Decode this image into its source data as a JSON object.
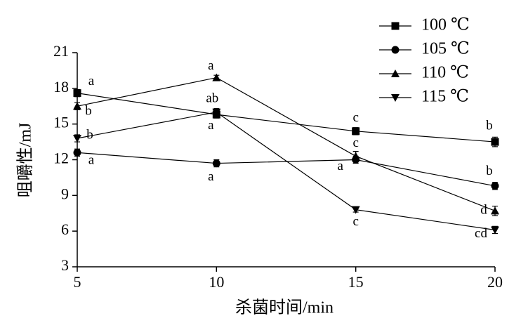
{
  "chart_data": {
    "type": "line",
    "x_label": "杀菌时间/min",
    "y_label": "咀嚼性/mJ",
    "x": [
      5,
      10,
      15,
      20
    ],
    "xlim": [
      5,
      20
    ],
    "xticks": [
      5,
      10,
      15,
      20
    ],
    "ylim": [
      3,
      21
    ],
    "yticks": [
      3,
      6,
      9,
      12,
      15,
      18,
      21
    ],
    "series": [
      {
        "name": "100 ℃",
        "marker": "square",
        "color": "#000000",
        "values": [
          17.6,
          15.8,
          14.4,
          13.5
        ],
        "errors": [
          0.3,
          0.3,
          0.3,
          0.4
        ],
        "labels": [
          "a",
          "ab",
          "c",
          "b"
        ]
      },
      {
        "name": "105 ℃",
        "marker": "circle",
        "color": "#000000",
        "values": [
          12.6,
          11.7,
          12.0,
          9.8
        ],
        "errors": [
          0.3,
          0.3,
          0.3,
          0.3
        ],
        "labels": [
          "a",
          "a",
          "a",
          "b"
        ]
      },
      {
        "name": "110 ℃",
        "marker": "triangle-up",
        "color": "#000000",
        "values": [
          16.5,
          18.9,
          12.3,
          7.7
        ],
        "errors": [
          0.3,
          0.2,
          0.4,
          0.4
        ],
        "labels": [
          "b",
          "a",
          "c",
          "d"
        ]
      },
      {
        "name": "115 ℃",
        "marker": "triangle-down",
        "color": "#000000",
        "values": [
          13.8,
          16.0,
          7.8,
          6.1
        ],
        "errors": [
          0.3,
          0.3,
          0.2,
          0.3
        ],
        "labels": [
          "b",
          "a",
          "c",
          "cd"
        ]
      }
    ]
  }
}
